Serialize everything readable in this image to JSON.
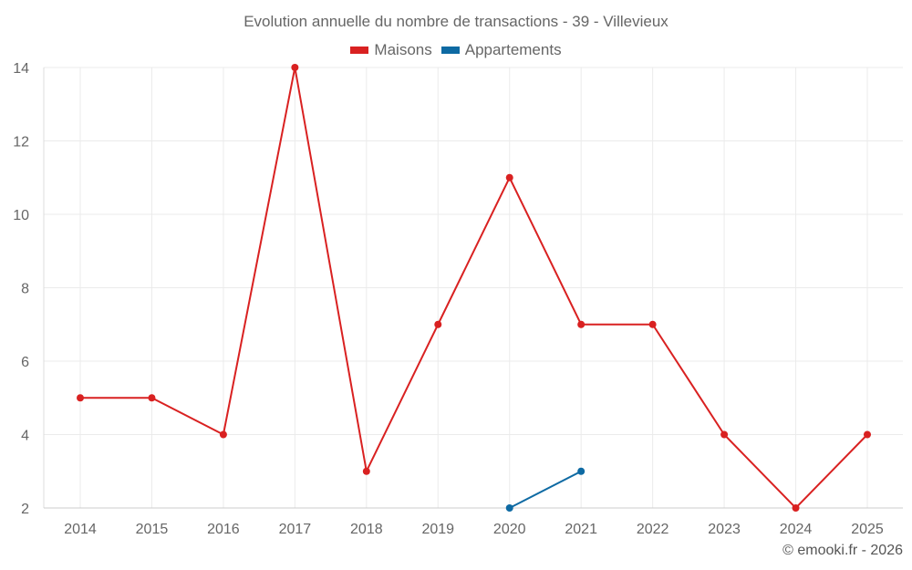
{
  "chart_data": {
    "type": "line",
    "title": "Evolution annuelle du nombre de transactions - 39 - Villevieux",
    "x": [
      "2014",
      "2015",
      "2016",
      "2017",
      "2018",
      "2019",
      "2020",
      "2021",
      "2022",
      "2023",
      "2024",
      "2025"
    ],
    "ylim": [
      2,
      14
    ],
    "yticks": [
      2,
      4,
      6,
      8,
      10,
      12,
      14
    ],
    "grid": true,
    "legend_placement": "top-center",
    "series": [
      {
        "name": "Maisons",
        "color": "#d92121",
        "values": [
          5,
          5,
          4,
          14,
          3,
          7,
          11,
          7,
          7,
          4,
          2,
          4
        ]
      },
      {
        "name": "Appartements",
        "color": "#0e6aa3",
        "values": [
          null,
          null,
          null,
          null,
          null,
          null,
          2,
          3,
          null,
          null,
          null,
          null
        ]
      }
    ]
  },
  "credit": "© emooki.fr - 2026"
}
